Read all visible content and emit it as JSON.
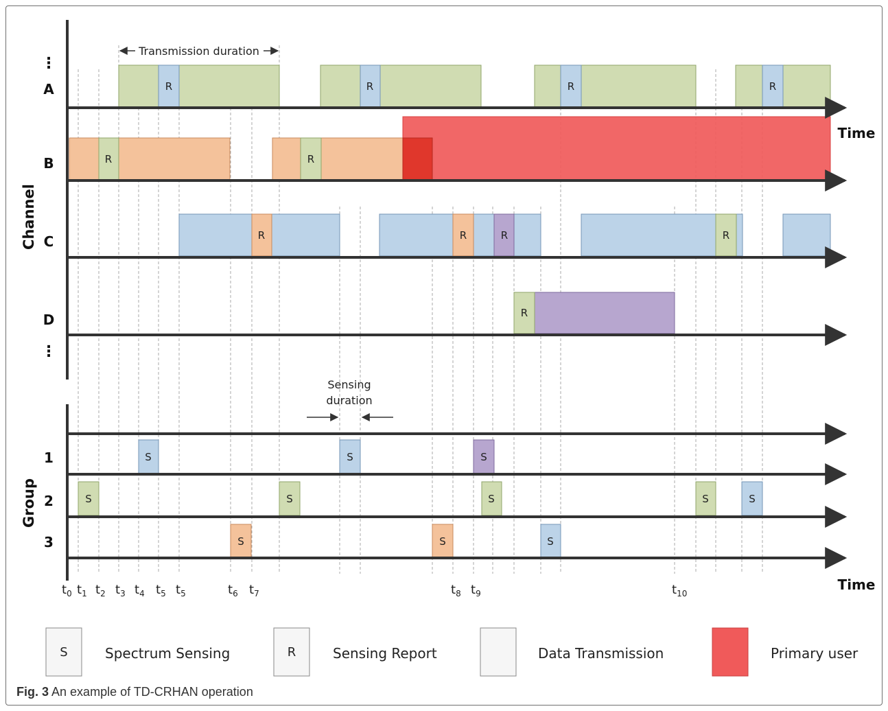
{
  "channel_axis_label": "Channel",
  "group_axis_label": "Group",
  "time_label": "Time",
  "ellipsis": "⋮",
  "channel_rows": [
    "A",
    "B",
    "C",
    "D"
  ],
  "group_rows": [
    "1",
    "2",
    "3"
  ],
  "transmission_annotation": "Transmission duration",
  "sensing_annotation": [
    "Sensing",
    "duration"
  ],
  "box_letters": {
    "sensing": "S",
    "report": "R"
  },
  "time_ticks": [
    {
      "base": "t",
      "sub": "0"
    },
    {
      "base": "t",
      "sub": "1"
    },
    {
      "base": "t",
      "sub": "2"
    },
    {
      "base": "t",
      "sub": "3"
    },
    {
      "base": "t",
      "sub": "4"
    },
    {
      "base": "t",
      "sub": "5"
    },
    {
      "base": "t",
      "sub": "5"
    },
    {
      "base": "t",
      "sub": "6"
    },
    {
      "base": "t",
      "sub": "7"
    },
    {
      "base": "t",
      "sub": "8"
    },
    {
      "base": "t",
      "sub": "9"
    },
    {
      "base": "t",
      "sub": "10"
    }
  ],
  "legend": [
    {
      "symbol": "S",
      "label": "Spectrum Sensing"
    },
    {
      "symbol": "R",
      "label": "Sensing Report"
    },
    {
      "symbol": "",
      "label": "Data Transmission"
    },
    {
      "symbol": "",
      "label": "Primary user"
    }
  ],
  "colors": {
    "green": "#d0dcb2",
    "green_stroke": "#8fa56a",
    "blue": "#bcd3e8",
    "blue_stroke": "#7595b6",
    "orange": "#f4c29b",
    "orange_stroke": "#c88a5c",
    "purple": "#b7a6cf",
    "purple_stroke": "#7e6a9c",
    "primary_user": "#f05a5a",
    "overlap": "#e0372c"
  },
  "caption": {
    "label": "Fig. 3",
    "text": "An example of TD-CRHAN operation"
  }
}
